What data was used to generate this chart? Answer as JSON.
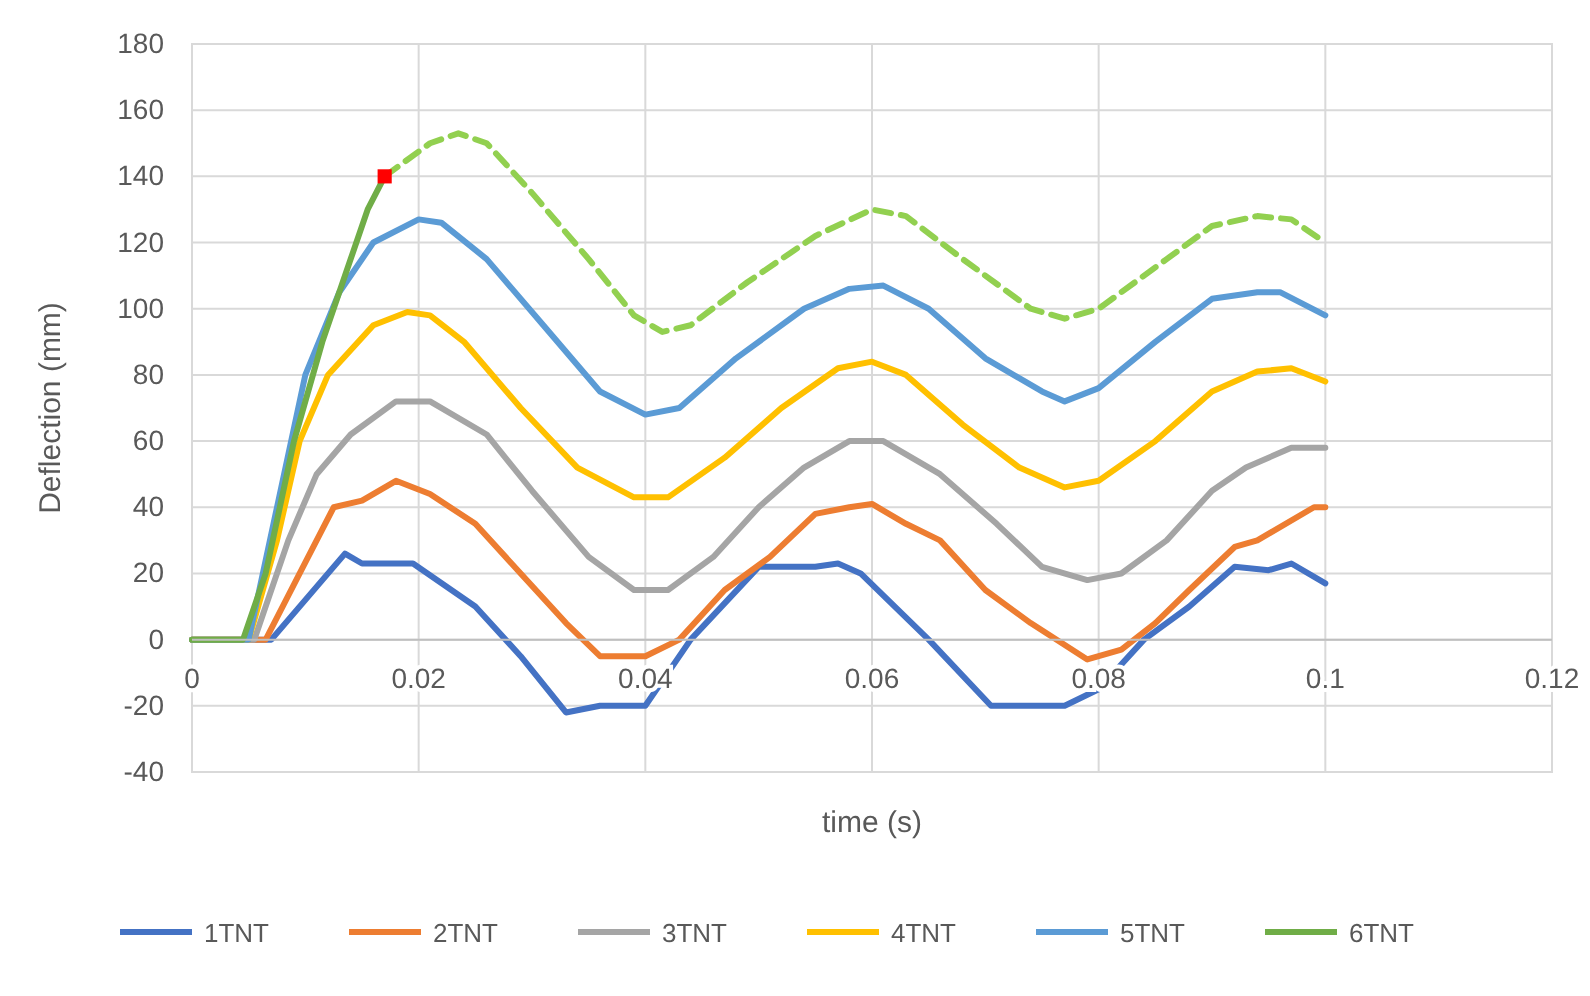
{
  "chart_data": {
    "type": "line",
    "xlabel": "time (s)",
    "ylabel": "Deflection (mm)",
    "xlim": [
      0,
      0.12
    ],
    "xticks": [
      0,
      0.02,
      0.04,
      0.06,
      0.08,
      0.1,
      0.12
    ],
    "ylim": [
      -40,
      180
    ],
    "yticks": [
      -40,
      -20,
      0,
      20,
      40,
      60,
      80,
      100,
      120,
      140,
      160,
      180
    ],
    "grid": true,
    "legend": "bottom",
    "marker": "none",
    "series": [
      {
        "name": "1TNT",
        "color": "#4472c4",
        "x": [
          0,
          0.007,
          0.0135,
          0.015,
          0.0195,
          0.025,
          0.029,
          0.033,
          0.036,
          0.04,
          0.044,
          0.05,
          0.055,
          0.057,
          0.059,
          0.065,
          0.0705,
          0.077,
          0.08,
          0.084,
          0.088,
          0.092,
          0.095,
          0.097,
          0.1
        ],
        "values": [
          0,
          0,
          26,
          23,
          23,
          10,
          -5,
          -22,
          -20,
          -20,
          0,
          22,
          22,
          23,
          20,
          0,
          -20,
          -20,
          -15,
          0,
          10,
          22,
          21,
          23,
          17
        ]
      },
      {
        "name": "2TNT",
        "color": "#ed7d31",
        "x": [
          0,
          0.0065,
          0.0095,
          0.0125,
          0.015,
          0.018,
          0.021,
          0.025,
          0.029,
          0.033,
          0.036,
          0.04,
          0.043,
          0.047,
          0.051,
          0.055,
          0.058,
          0.06,
          0.063,
          0.066,
          0.07,
          0.074,
          0.079,
          0.082,
          0.085,
          0.088,
          0.092,
          0.094,
          0.099,
          0.1
        ],
        "values": [
          0,
          0,
          20,
          40,
          42,
          48,
          44,
          35,
          20,
          5,
          -5,
          -5,
          0,
          15,
          25,
          38,
          40,
          41,
          35,
          30,
          15,
          5,
          -6,
          -3,
          5,
          15,
          28,
          30,
          40,
          40
        ]
      },
      {
        "name": "3TNT",
        "color": "#a5a5a5",
        "x": [
          0,
          0.0055,
          0.0085,
          0.011,
          0.014,
          0.018,
          0.021,
          0.026,
          0.03,
          0.035,
          0.039,
          0.042,
          0.046,
          0.05,
          0.054,
          0.058,
          0.061,
          0.066,
          0.071,
          0.075,
          0.079,
          0.082,
          0.086,
          0.09,
          0.093,
          0.097,
          0.1
        ],
        "values": [
          0,
          0,
          30,
          50,
          62,
          72,
          72,
          62,
          45,
          25,
          15,
          15,
          25,
          40,
          52,
          60,
          60,
          50,
          35,
          22,
          18,
          20,
          30,
          45,
          52,
          58,
          58
        ]
      },
      {
        "name": "4TNT",
        "color": "#ffc000",
        "x": [
          0,
          0.005,
          0.0075,
          0.0095,
          0.012,
          0.016,
          0.019,
          0.021,
          0.024,
          0.029,
          0.034,
          0.039,
          0.042,
          0.047,
          0.052,
          0.057,
          0.06,
          0.063,
          0.068,
          0.073,
          0.077,
          0.08,
          0.085,
          0.09,
          0.094,
          0.097,
          0.1
        ],
        "values": [
          0,
          0,
          30,
          60,
          80,
          95,
          99,
          98,
          90,
          70,
          52,
          43,
          43,
          55,
          70,
          82,
          84,
          80,
          65,
          52,
          46,
          48,
          60,
          75,
          81,
          82,
          78
        ]
      },
      {
        "name": "5TNT",
        "color": "#5b9bd5",
        "x": [
          0,
          0.005,
          0.0075,
          0.01,
          0.013,
          0.016,
          0.02,
          0.022,
          0.026,
          0.031,
          0.036,
          0.04,
          0.043,
          0.048,
          0.054,
          0.058,
          0.061,
          0.065,
          0.07,
          0.075,
          0.077,
          0.08,
          0.085,
          0.09,
          0.094,
          0.096,
          0.1
        ],
        "values": [
          0,
          0,
          40,
          80,
          105,
          120,
          127,
          126,
          115,
          95,
          75,
          68,
          70,
          85,
          100,
          106,
          107,
          100,
          85,
          75,
          72,
          76,
          90,
          103,
          105,
          105,
          98
        ]
      },
      {
        "name": "6TNT",
        "color": "#70ad47",
        "x": [
          0,
          0.0045,
          0.0065,
          0.009,
          0.0115,
          0.014,
          0.0155,
          0.017
        ],
        "values": [
          0,
          0,
          20,
          60,
          90,
          115,
          130,
          140
        ]
      },
      {
        "color": "#92d050",
        "line_style": "dashed",
        "x": [
          0.017,
          0.021,
          0.0235,
          0.026,
          0.03,
          0.035,
          0.039,
          0.0415,
          0.044,
          0.049,
          0.055,
          0.06,
          0.063,
          0.068,
          0.074,
          0.077,
          0.08,
          0.086,
          0.09,
          0.094,
          0.097,
          0.1
        ],
        "values": [
          140,
          150,
          153,
          150,
          135,
          115,
          98,
          93,
          95,
          108,
          122,
          130,
          128,
          115,
          100,
          97,
          100,
          115,
          125,
          128,
          127,
          120
        ]
      },
      {
        "type": "scatter",
        "color": "#ff0000",
        "marker": "square",
        "x": [
          0.017
        ],
        "values": [
          140
        ]
      }
    ]
  }
}
